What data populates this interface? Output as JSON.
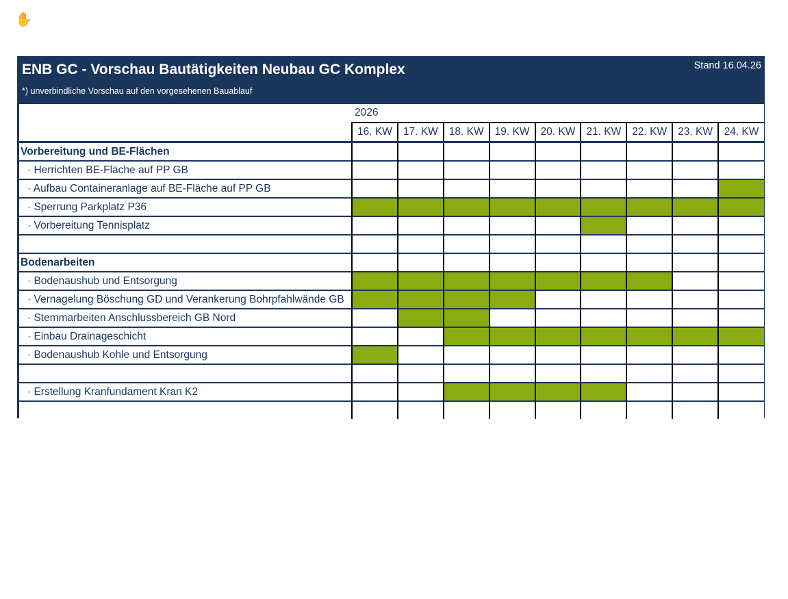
{
  "header": {
    "title": "ENB GC - Vorschau Bautätigkeiten Neubau GC Komplex",
    "subtitle": "*) unverbindliche Vorschau auf den vorgesehenen Bauablauf",
    "stand": "Stand 16.04.26"
  },
  "year": "2026",
  "weeks": [
    "16. KW",
    "17. KW",
    "18. KW",
    "19. KW",
    "20. KW",
    "21. KW",
    "22. KW",
    "23. KW",
    "24. KW"
  ],
  "colors": {
    "navy": "#1b365d",
    "active": "#8aac12"
  },
  "rows": [
    {
      "type": "section",
      "label": "Vorbereitung und BE-Flächen",
      "active": []
    },
    {
      "type": "task",
      "label": "· Herrichten BE-Fläche auf PP GB",
      "active": []
    },
    {
      "type": "task",
      "label": "· Aufbau Containeranlage auf BE-Fläche auf PP GB",
      "active": [
        "24. KW"
      ]
    },
    {
      "type": "task",
      "label": "· Sperrung Parkplatz P36",
      "active": [
        "16. KW",
        "17. KW",
        "18. KW",
        "19. KW",
        "20. KW",
        "21. KW",
        "22. KW",
        "23. KW",
        "24. KW"
      ]
    },
    {
      "type": "task",
      "label": "· Vorbereitung Tennisplatz",
      "active": [
        "21. KW"
      ]
    },
    {
      "type": "empty",
      "label": "",
      "active": []
    },
    {
      "type": "section",
      "label": "Bodenarbeiten",
      "active": []
    },
    {
      "type": "task",
      "label": "· Bodenaushub und Entsorgung",
      "active": [
        "16. KW",
        "17. KW",
        "18. KW",
        "19. KW",
        "20. KW",
        "21. KW",
        "22. KW"
      ]
    },
    {
      "type": "task",
      "label": "· Vernagelung Böschung GD und Verankerung Bohrpfahlwände GB",
      "active": [
        "16. KW",
        "17. KW",
        "18. KW",
        "19. KW"
      ]
    },
    {
      "type": "task",
      "label": "· Stemmarbeiten Anschlussbereich GB Nord",
      "active": [
        "17. KW",
        "18. KW"
      ]
    },
    {
      "type": "task",
      "label": "· Einbau Drainageschicht",
      "active": [
        "18. KW",
        "19. KW",
        "20. KW",
        "21. KW",
        "22. KW",
        "23. KW",
        "24. KW"
      ]
    },
    {
      "type": "task",
      "label": "· Bodenaushub Kohle und Entsorgung",
      "active": [
        "16. KW"
      ]
    },
    {
      "type": "empty",
      "label": "",
      "active": []
    },
    {
      "type": "task",
      "label": "· Erstellung Kranfundament Kran K2",
      "active": [
        "18. KW",
        "19. KW",
        "20. KW",
        "21. KW"
      ]
    },
    {
      "type": "empty",
      "label": "",
      "active": []
    }
  ]
}
